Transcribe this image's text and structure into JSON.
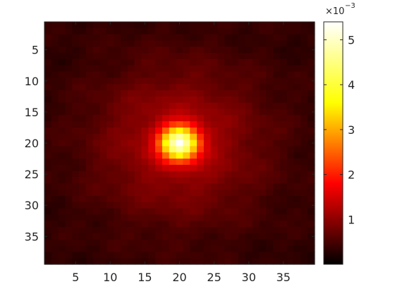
{
  "chart_data": {
    "type": "heatmap",
    "title": "",
    "xlabel": "",
    "ylabel": "",
    "grid": false,
    "rows": 39,
    "cols": 39,
    "colormap": "hot",
    "x_ticks": [
      5,
      10,
      15,
      20,
      25,
      30,
      35
    ],
    "x_tick_labels": [
      "5",
      "10",
      "15",
      "20",
      "25",
      "30",
      "35"
    ],
    "y_ticks": [
      5,
      10,
      15,
      20,
      25,
      30,
      35
    ],
    "y_tick_labels": [
      "5",
      "10",
      "15",
      "20",
      "25",
      "30",
      "35"
    ],
    "y_axis_direction": "down",
    "peak": {
      "x": 20,
      "y": 20,
      "value": 0.0054
    },
    "background_value": 0.0006,
    "colorbar": {
      "min": 0,
      "max": 0.0054,
      "ticks": [
        1,
        2,
        3,
        4,
        5
      ],
      "tick_labels": [
        "1",
        "2",
        "3",
        "4",
        "5"
      ],
      "exponent_base": "×10",
      "exponent": "−3"
    }
  }
}
